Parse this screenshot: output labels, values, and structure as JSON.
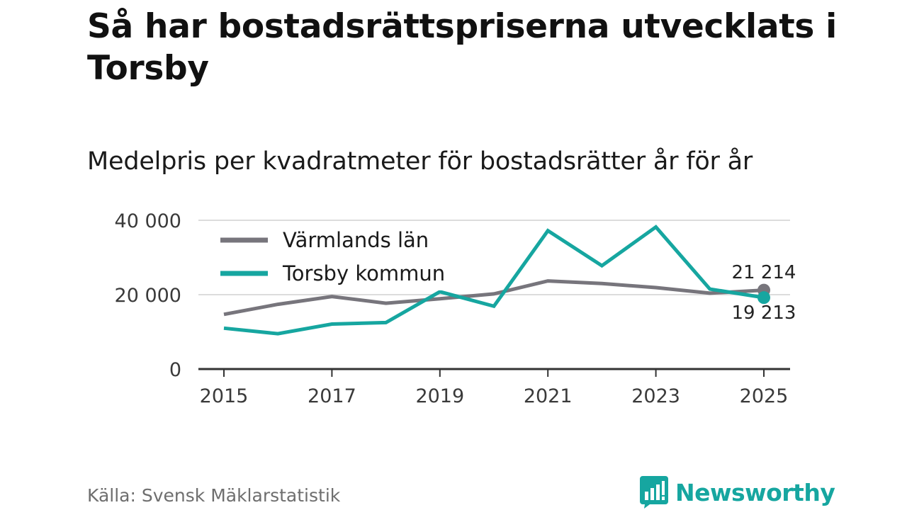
{
  "header": {
    "title": "Så har bostadsrättspriserna utvecklats i Torsby",
    "subtitle": "Medelpris per kvadratmeter för bostadsrätter år för år"
  },
  "footer": {
    "source": "Källa: Svensk Mäklarstatistik",
    "brand": "Newsworthy"
  },
  "colors": {
    "varmland": "#77757c",
    "torsby": "#16a6a0",
    "grid": "#dcdcdc",
    "axis": "#333333"
  },
  "chart_data": {
    "type": "line",
    "title": "Medelpris per kvadratmeter för bostadsrätter år för år",
    "x": [
      2015,
      2016,
      2017,
      2018,
      2019,
      2020,
      2021,
      2022,
      2023,
      2024,
      2025
    ],
    "xticks": [
      2015,
      2017,
      2019,
      2021,
      2023,
      2025
    ],
    "xtick_labels": [
      "2015",
      "2017",
      "2019",
      "2021",
      "2023",
      "2025"
    ],
    "yticks": [
      0,
      20000,
      40000
    ],
    "ytick_labels": [
      "0",
      "20 000",
      "40 000"
    ],
    "ylim": [
      0,
      40000
    ],
    "xlim": [
      2015,
      2025
    ],
    "grid": true,
    "legend_position": "top-left",
    "series": [
      {
        "name": "Värmlands län",
        "color": "#77757c",
        "values": [
          14700,
          17400,
          19500,
          17700,
          18900,
          20200,
          23700,
          23000,
          21900,
          20400,
          21214
        ],
        "end_label": "21 214"
      },
      {
        "name": "Torsby kommun",
        "color": "#16a6a0",
        "values": [
          11000,
          9500,
          12100,
          12500,
          20800,
          16900,
          37200,
          27800,
          38200,
          21500,
          19213
        ],
        "end_label": "19 213"
      }
    ]
  }
}
